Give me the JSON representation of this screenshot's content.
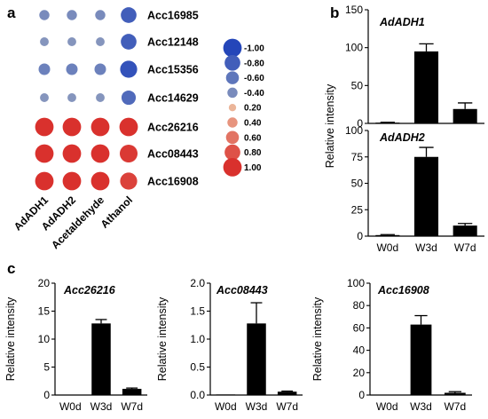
{
  "panel_letters": {
    "a": "a",
    "b": "b",
    "c": "c"
  },
  "colors": {
    "bar": "#000000",
    "low": "#2446b9",
    "mid": "#f0d6b4",
    "high": "#d9312d",
    "neutral": "#8c9bb0"
  },
  "chart_data": [
    {
      "panel": "a",
      "type": "heatmap",
      "rows": [
        "Acc16985",
        "Acc12148",
        "Acc15356",
        "Acc14629",
        "Acc26216",
        "Acc08443",
        "Acc16908"
      ],
      "columns": [
        "AdADH1",
        "AdADH2",
        "Acetaldehyde",
        "Athanol"
      ],
      "values": [
        [
          -0.4,
          -0.4,
          -0.4,
          -0.8
        ],
        [
          -0.3,
          -0.3,
          -0.3,
          -0.8
        ],
        [
          -0.5,
          -0.5,
          -0.5,
          -0.9
        ],
        [
          -0.3,
          -0.3,
          -0.3,
          -0.7
        ],
        [
          1.0,
          1.0,
          1.0,
          1.0
        ],
        [
          1.0,
          1.0,
          1.0,
          0.95
        ],
        [
          1.0,
          1.0,
          1.0,
          0.9
        ]
      ],
      "legend": {
        "labels": [
          "-1.00",
          "-0.80",
          "-0.60",
          "-0.40",
          "0.20",
          "0.40",
          "0.60",
          "0.80",
          "1.00"
        ],
        "values": [
          -1.0,
          -0.8,
          -0.6,
          -0.4,
          0.2,
          0.4,
          0.6,
          0.8,
          1.0
        ]
      }
    },
    {
      "panel": "b",
      "type": "bar",
      "title": "AdADH1",
      "ylabel": "Relative intensity",
      "categories": [
        "W0d",
        "W3d",
        "W7d"
      ],
      "values": [
        1,
        95,
        19
      ],
      "errors": [
        0.5,
        10,
        8
      ],
      "ylim": [
        0,
        150
      ],
      "yticks": [
        0,
        50,
        100,
        150
      ]
    },
    {
      "panel": "b",
      "type": "bar",
      "title": "AdADH2",
      "ylabel": "Relative intensity",
      "categories": [
        "W0d",
        "W3d",
        "W7d"
      ],
      "values": [
        1,
        75,
        10
      ],
      "errors": [
        0.5,
        9,
        2
      ],
      "ylim": [
        0,
        100
      ],
      "yticks": [
        0,
        25,
        50,
        75,
        100
      ]
    },
    {
      "panel": "c",
      "type": "bar",
      "title": "Acc26216",
      "ylabel": "Relative intensity",
      "categories": [
        "W0d",
        "W3d",
        "W7d"
      ],
      "values": [
        0,
        12.8,
        1.1
      ],
      "errors": [
        0,
        0.7,
        0.15
      ],
      "ylim": [
        0,
        20
      ],
      "yticks": [
        0,
        5,
        10,
        15,
        20
      ]
    },
    {
      "panel": "c",
      "type": "bar",
      "title": "Acc08443",
      "ylabel": "Relative intensity",
      "categories": [
        "W0d",
        "W3d",
        "W7d"
      ],
      "values": [
        0.01,
        1.28,
        0.06
      ],
      "errors": [
        0,
        0.37,
        0.01
      ],
      "ylim": [
        0,
        2.0
      ],
      "yticks": [
        0.0,
        0.5,
        1.0,
        1.5,
        2.0
      ]
    },
    {
      "panel": "c",
      "type": "bar",
      "title": "Acc16908",
      "ylabel": "Relative intensity",
      "categories": [
        "W0d",
        "W3d",
        "W7d"
      ],
      "values": [
        0,
        63,
        2
      ],
      "errors": [
        0,
        8,
        1
      ],
      "ylim": [
        0,
        100
      ],
      "yticks": [
        0,
        20,
        40,
        60,
        80,
        100
      ]
    }
  ]
}
